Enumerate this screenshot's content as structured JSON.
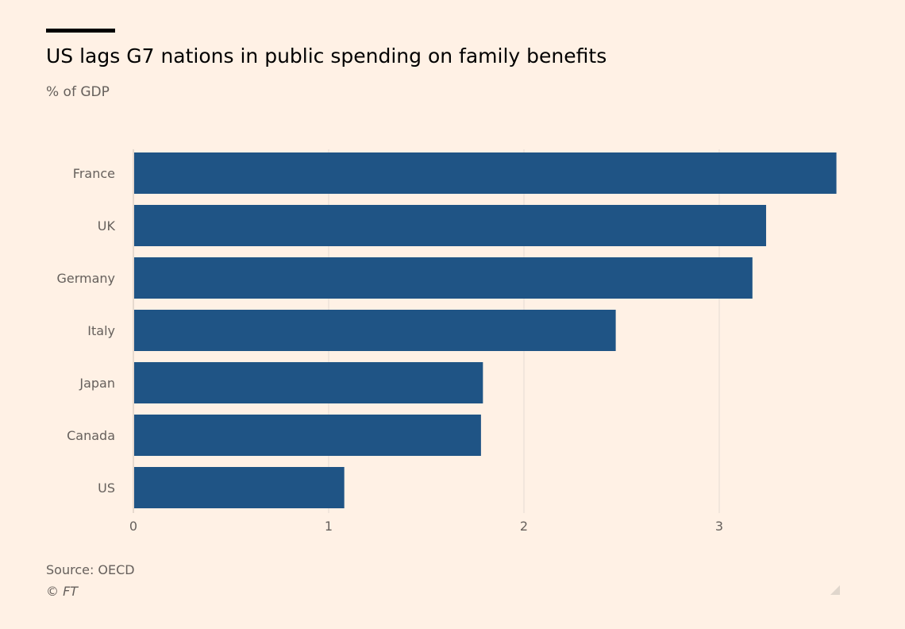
{
  "chart_data": {
    "type": "bar",
    "orientation": "horizontal",
    "title": "US lags G7 nations in public spending on family benefits",
    "subtitle": "% of GDP",
    "categories": [
      "France",
      "UK",
      "Germany",
      "Italy",
      "Japan",
      "Canada",
      "US"
    ],
    "values": [
      3.6,
      3.24,
      3.17,
      2.47,
      1.79,
      1.78,
      1.08
    ],
    "xlim": [
      0,
      3.6
    ],
    "xticks": [
      "0",
      "1",
      "2",
      "3"
    ],
    "grid": true,
    "bar_color": "#1f5485",
    "source": "Source: OECD",
    "credit": "© FT"
  }
}
